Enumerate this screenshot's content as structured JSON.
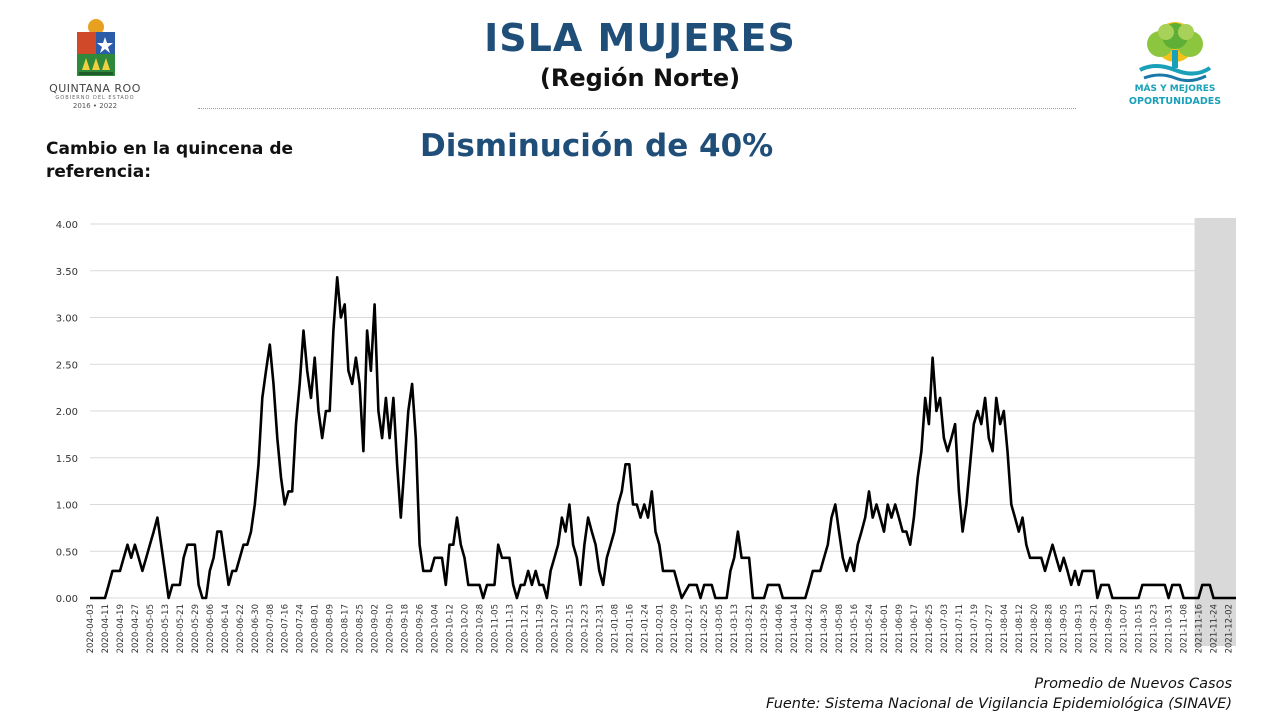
{
  "header": {
    "title": "ISLA MUJERES",
    "subtitle": "(Región Norte)",
    "ref_label": "Cambio en la quincena de referencia:",
    "headline": "Disminución de 40%"
  },
  "logos": {
    "left": {
      "name": "QUINTANA ROO",
      "sub": "GOBIERNO DEL ESTADO",
      "years": "2016 • 2022"
    },
    "right": {
      "line1": "MÁS Y MEJORES",
      "line2": "OPORTUNIDADES"
    }
  },
  "footer": {
    "line1": "Promedio de Nuevos Casos",
    "line2": "Fuente: Sistema Nacional de Vigilancia Epidemiológica (SINAVE)"
  },
  "colors": {
    "title": "#1f4e79",
    "line": "#000000",
    "grid": "#d9d9d9",
    "shade": "#d9d9d9",
    "slogan": "#1aa0b8"
  },
  "chart_data": {
    "type": "line",
    "title": "",
    "xlabel": "",
    "ylabel": "",
    "ylim": [
      0,
      4
    ],
    "yticks": [
      "0.00",
      "0.50",
      "1.00",
      "1.50",
      "2.00",
      "2.50",
      "3.00",
      "3.50",
      "4.00"
    ],
    "grid": "horizontal",
    "shaded_region": {
      "from": "2021-11-16",
      "to": "2021-12-06"
    },
    "x_tick_labels": [
      "2020-04-03",
      "2020-04-11",
      "2020-04-19",
      "2020-04-27",
      "2020-05-05",
      "2020-05-13",
      "2020-05-21",
      "2020-05-29",
      "2020-06-06",
      "2020-06-14",
      "2020-06-22",
      "2020-06-30",
      "2020-07-08",
      "2020-07-16",
      "2020-07-24",
      "2020-08-01",
      "2020-08-09",
      "2020-08-17",
      "2020-08-25",
      "2020-09-02",
      "2020-09-10",
      "2020-09-18",
      "2020-09-26",
      "2020-10-04",
      "2020-10-12",
      "2020-10-20",
      "2020-10-28",
      "2020-11-05",
      "2020-11-13",
      "2020-11-21",
      "2020-11-29",
      "2020-12-07",
      "2020-12-15",
      "2020-12-23",
      "2020-12-31",
      "2021-01-08",
      "2021-01-16",
      "2021-01-24",
      "2021-02-01",
      "2021-02-09",
      "2021-02-17",
      "2021-02-25",
      "2021-03-05",
      "2021-03-13",
      "2021-03-21",
      "2021-03-29",
      "2021-04-06",
      "2021-04-14",
      "2021-04-22",
      "2021-04-30",
      "2021-05-08",
      "2021-05-16",
      "2021-05-24",
      "2021-06-01",
      "2021-06-09",
      "2021-06-17",
      "2021-06-25",
      "2021-07-03",
      "2021-07-11",
      "2021-07-19",
      "2021-07-27",
      "2021-08-04",
      "2021-08-12",
      "2021-08-20",
      "2021-08-28",
      "2021-09-05",
      "2021-09-13",
      "2021-09-21",
      "2021-09-29",
      "2021-10-07",
      "2021-10-15",
      "2021-10-23",
      "2021-10-31",
      "2021-11-08",
      "2021-11-16",
      "2021-11-24",
      "2021-12-02"
    ],
    "series": [
      {
        "name": "Promedio de Nuevos Casos",
        "points": [
          [
            "2020-04-03",
            0
          ],
          [
            "2020-04-11",
            0
          ],
          [
            "2020-04-13",
            0.14
          ],
          [
            "2020-04-15",
            0.29
          ],
          [
            "2020-04-19",
            0.29
          ],
          [
            "2020-04-21",
            0.43
          ],
          [
            "2020-04-23",
            0.57
          ],
          [
            "2020-04-25",
            0.43
          ],
          [
            "2020-04-27",
            0.57
          ],
          [
            "2020-04-29",
            0.43
          ],
          [
            "2020-05-01",
            0.29
          ],
          [
            "2020-05-03",
            0.43
          ],
          [
            "2020-05-05",
            0.57
          ],
          [
            "2020-05-07",
            0.71
          ],
          [
            "2020-05-09",
            0.86
          ],
          [
            "2020-05-11",
            0.57
          ],
          [
            "2020-05-13",
            0.29
          ],
          [
            "2020-05-15",
            0
          ],
          [
            "2020-05-17",
            0.14
          ],
          [
            "2020-05-21",
            0.14
          ],
          [
            "2020-05-23",
            0.43
          ],
          [
            "2020-05-25",
            0.57
          ],
          [
            "2020-05-29",
            0.57
          ],
          [
            "2020-05-31",
            0.14
          ],
          [
            "2020-06-02",
            0
          ],
          [
            "2020-06-04",
            0
          ],
          [
            "2020-06-06",
            0.29
          ],
          [
            "2020-06-08",
            0.43
          ],
          [
            "2020-06-10",
            0.71
          ],
          [
            "2020-06-12",
            0.71
          ],
          [
            "2020-06-14",
            0.43
          ],
          [
            "2020-06-16",
            0.14
          ],
          [
            "2020-06-18",
            0.29
          ],
          [
            "2020-06-20",
            0.29
          ],
          [
            "2020-06-22",
            0.43
          ],
          [
            "2020-06-24",
            0.57
          ],
          [
            "2020-06-26",
            0.57
          ],
          [
            "2020-06-28",
            0.71
          ],
          [
            "2020-06-30",
            1.0
          ],
          [
            "2020-07-02",
            1.43
          ],
          [
            "2020-07-04",
            2.14
          ],
          [
            "2020-07-06",
            2.43
          ],
          [
            "2020-07-08",
            2.71
          ],
          [
            "2020-07-10",
            2.29
          ],
          [
            "2020-07-12",
            1.71
          ],
          [
            "2020-07-14",
            1.29
          ],
          [
            "2020-07-16",
            1.0
          ],
          [
            "2020-07-18",
            1.14
          ],
          [
            "2020-07-20",
            1.14
          ],
          [
            "2020-07-22",
            1.86
          ],
          [
            "2020-07-24",
            2.29
          ],
          [
            "2020-07-26",
            2.86
          ],
          [
            "2020-07-28",
            2.43
          ],
          [
            "2020-07-30",
            2.14
          ],
          [
            "2020-08-01",
            2.57
          ],
          [
            "2020-08-03",
            2.0
          ],
          [
            "2020-08-05",
            1.71
          ],
          [
            "2020-08-07",
            2.0
          ],
          [
            "2020-08-09",
            2.0
          ],
          [
            "2020-08-11",
            2.86
          ],
          [
            "2020-08-13",
            3.43
          ],
          [
            "2020-08-15",
            3.0
          ],
          [
            "2020-08-17",
            3.14
          ],
          [
            "2020-08-19",
            2.43
          ],
          [
            "2020-08-21",
            2.29
          ],
          [
            "2020-08-23",
            2.57
          ],
          [
            "2020-08-25",
            2.29
          ],
          [
            "2020-08-27",
            1.57
          ],
          [
            "2020-08-29",
            2.86
          ],
          [
            "2020-08-31",
            2.43
          ],
          [
            "2020-09-02",
            3.14
          ],
          [
            "2020-09-04",
            2.0
          ],
          [
            "2020-09-06",
            1.71
          ],
          [
            "2020-09-08",
            2.14
          ],
          [
            "2020-09-10",
            1.71
          ],
          [
            "2020-09-12",
            2.14
          ],
          [
            "2020-09-14",
            1.43
          ],
          [
            "2020-09-16",
            0.86
          ],
          [
            "2020-09-18",
            1.43
          ],
          [
            "2020-09-20",
            2.0
          ],
          [
            "2020-09-22",
            2.29
          ],
          [
            "2020-09-24",
            1.71
          ],
          [
            "2020-09-26",
            0.57
          ],
          [
            "2020-09-28",
            0.29
          ],
          [
            "2020-10-02",
            0.29
          ],
          [
            "2020-10-04",
            0.43
          ],
          [
            "2020-10-08",
            0.43
          ],
          [
            "2020-10-10",
            0.14
          ],
          [
            "2020-10-12",
            0.57
          ],
          [
            "2020-10-14",
            0.57
          ],
          [
            "2020-10-16",
            0.86
          ],
          [
            "2020-10-18",
            0.57
          ],
          [
            "2020-10-20",
            0.43
          ],
          [
            "2020-10-22",
            0.14
          ],
          [
            "2020-10-28",
            0.14
          ],
          [
            "2020-10-30",
            0
          ],
          [
            "2020-11-01",
            0.14
          ],
          [
            "2020-11-05",
            0.14
          ],
          [
            "2020-11-07",
            0.57
          ],
          [
            "2020-11-09",
            0.43
          ],
          [
            "2020-11-13",
            0.43
          ],
          [
            "2020-11-15",
            0.14
          ],
          [
            "2020-11-17",
            0
          ],
          [
            "2020-11-19",
            0.14
          ],
          [
            "2020-11-21",
            0.14
          ],
          [
            "2020-11-23",
            0.29
          ],
          [
            "2020-11-25",
            0.14
          ],
          [
            "2020-11-27",
            0.29
          ],
          [
            "2020-11-29",
            0.14
          ],
          [
            "2020-12-01",
            0.14
          ],
          [
            "2020-12-03",
            0
          ],
          [
            "2020-12-05",
            0.29
          ],
          [
            "2020-12-07",
            0.43
          ],
          [
            "2020-12-09",
            0.57
          ],
          [
            "2020-12-11",
            0.86
          ],
          [
            "2020-12-13",
            0.71
          ],
          [
            "2020-12-15",
            1.0
          ],
          [
            "2020-12-17",
            0.57
          ],
          [
            "2020-12-19",
            0.43
          ],
          [
            "2020-12-21",
            0.14
          ],
          [
            "2020-12-23",
            0.57
          ],
          [
            "2020-12-25",
            0.86
          ],
          [
            "2020-12-27",
            0.71
          ],
          [
            "2020-12-29",
            0.57
          ],
          [
            "2020-12-31",
            0.29
          ],
          [
            "2021-01-02",
            0.14
          ],
          [
            "2021-01-04",
            0.43
          ],
          [
            "2021-01-06",
            0.57
          ],
          [
            "2021-01-08",
            0.71
          ],
          [
            "2021-01-10",
            1.0
          ],
          [
            "2021-01-12",
            1.14
          ],
          [
            "2021-01-14",
            1.43
          ],
          [
            "2021-01-16",
            1.43
          ],
          [
            "2021-01-18",
            1.0
          ],
          [
            "2021-01-20",
            1.0
          ],
          [
            "2021-01-22",
            0.86
          ],
          [
            "2021-01-24",
            1.0
          ],
          [
            "2021-01-26",
            0.86
          ],
          [
            "2021-01-28",
            1.14
          ],
          [
            "2021-01-30",
            0.71
          ],
          [
            "2021-02-01",
            0.57
          ],
          [
            "2021-02-03",
            0.29
          ],
          [
            "2021-02-09",
            0.29
          ],
          [
            "2021-02-11",
            0.14
          ],
          [
            "2021-02-13",
            0
          ],
          [
            "2021-02-17",
            0.14
          ],
          [
            "2021-02-21",
            0.14
          ],
          [
            "2021-02-23",
            0
          ],
          [
            "2021-02-25",
            0.14
          ],
          [
            "2021-03-01",
            0.14
          ],
          [
            "2021-03-03",
            0
          ],
          [
            "2021-03-09",
            0
          ],
          [
            "2021-03-11",
            0.29
          ],
          [
            "2021-03-13",
            0.43
          ],
          [
            "2021-03-15",
            0.71
          ],
          [
            "2021-03-17",
            0.43
          ],
          [
            "2021-03-21",
            0.43
          ],
          [
            "2021-03-23",
            0
          ],
          [
            "2021-03-29",
            0
          ],
          [
            "2021-03-31",
            0.14
          ],
          [
            "2021-04-06",
            0.14
          ],
          [
            "2021-04-08",
            0
          ],
          [
            "2021-04-20",
            0
          ],
          [
            "2021-04-22",
            0.14
          ],
          [
            "2021-04-24",
            0.29
          ],
          [
            "2021-04-28",
            0.29
          ],
          [
            "2021-04-30",
            0.43
          ],
          [
            "2021-05-02",
            0.57
          ],
          [
            "2021-05-04",
            0.86
          ],
          [
            "2021-05-06",
            1.0
          ],
          [
            "2021-05-08",
            0.71
          ],
          [
            "2021-05-10",
            0.43
          ],
          [
            "2021-05-12",
            0.29
          ],
          [
            "2021-05-14",
            0.43
          ],
          [
            "2021-05-16",
            0.29
          ],
          [
            "2021-05-18",
            0.57
          ],
          [
            "2021-05-20",
            0.71
          ],
          [
            "2021-05-22",
            0.86
          ],
          [
            "2021-05-24",
            1.14
          ],
          [
            "2021-05-26",
            0.86
          ],
          [
            "2021-05-28",
            1.0
          ],
          [
            "2021-05-30",
            0.86
          ],
          [
            "2021-06-01",
            0.71
          ],
          [
            "2021-06-03",
            1.0
          ],
          [
            "2021-06-05",
            0.86
          ],
          [
            "2021-06-07",
            1.0
          ],
          [
            "2021-06-09",
            0.86
          ],
          [
            "2021-06-11",
            0.71
          ],
          [
            "2021-06-13",
            0.71
          ],
          [
            "2021-06-15",
            0.57
          ],
          [
            "2021-06-17",
            0.86
          ],
          [
            "2021-06-19",
            1.29
          ],
          [
            "2021-06-21",
            1.57
          ],
          [
            "2021-06-23",
            2.14
          ],
          [
            "2021-06-25",
            1.86
          ],
          [
            "2021-06-27",
            2.57
          ],
          [
            "2021-06-29",
            2.0
          ],
          [
            "2021-07-01",
            2.14
          ],
          [
            "2021-07-03",
            1.71
          ],
          [
            "2021-07-05",
            1.57
          ],
          [
            "2021-07-07",
            1.71
          ],
          [
            "2021-07-09",
            1.86
          ],
          [
            "2021-07-11",
            1.14
          ],
          [
            "2021-07-13",
            0.71
          ],
          [
            "2021-07-15",
            1.0
          ],
          [
            "2021-07-17",
            1.43
          ],
          [
            "2021-07-19",
            1.86
          ],
          [
            "2021-07-21",
            2.0
          ],
          [
            "2021-07-23",
            1.86
          ],
          [
            "2021-07-25",
            2.14
          ],
          [
            "2021-07-27",
            1.71
          ],
          [
            "2021-07-29",
            1.57
          ],
          [
            "2021-07-31",
            2.14
          ],
          [
            "2021-08-02",
            1.86
          ],
          [
            "2021-08-04",
            2.0
          ],
          [
            "2021-08-06",
            1.57
          ],
          [
            "2021-08-08",
            1.0
          ],
          [
            "2021-08-10",
            0.86
          ],
          [
            "2021-08-12",
            0.71
          ],
          [
            "2021-08-14",
            0.86
          ],
          [
            "2021-08-16",
            0.57
          ],
          [
            "2021-08-18",
            0.43
          ],
          [
            "2021-08-24",
            0.43
          ],
          [
            "2021-08-26",
            0.29
          ],
          [
            "2021-08-28",
            0.43
          ],
          [
            "2021-08-30",
            0.57
          ],
          [
            "2021-09-01",
            0.43
          ],
          [
            "2021-09-03",
            0.29
          ],
          [
            "2021-09-05",
            0.43
          ],
          [
            "2021-09-07",
            0.29
          ],
          [
            "2021-09-09",
            0.14
          ],
          [
            "2021-09-11",
            0.29
          ],
          [
            "2021-09-13",
            0.14
          ],
          [
            "2021-09-15",
            0.29
          ],
          [
            "2021-09-21",
            0.29
          ],
          [
            "2021-09-23",
            0
          ],
          [
            "2021-09-25",
            0.14
          ],
          [
            "2021-09-29",
            0.14
          ],
          [
            "2021-10-01",
            0
          ],
          [
            "2021-10-15",
            0
          ],
          [
            "2021-10-17",
            0.14
          ],
          [
            "2021-10-29",
            0.14
          ],
          [
            "2021-10-31",
            0
          ],
          [
            "2021-11-02",
            0.14
          ],
          [
            "2021-11-06",
            0.14
          ],
          [
            "2021-11-08",
            0
          ],
          [
            "2021-11-16",
            0
          ],
          [
            "2021-11-18",
            0.14
          ],
          [
            "2021-11-22",
            0.14
          ],
          [
            "2021-11-24",
            0
          ],
          [
            "2021-12-06",
            0
          ]
        ]
      }
    ]
  }
}
